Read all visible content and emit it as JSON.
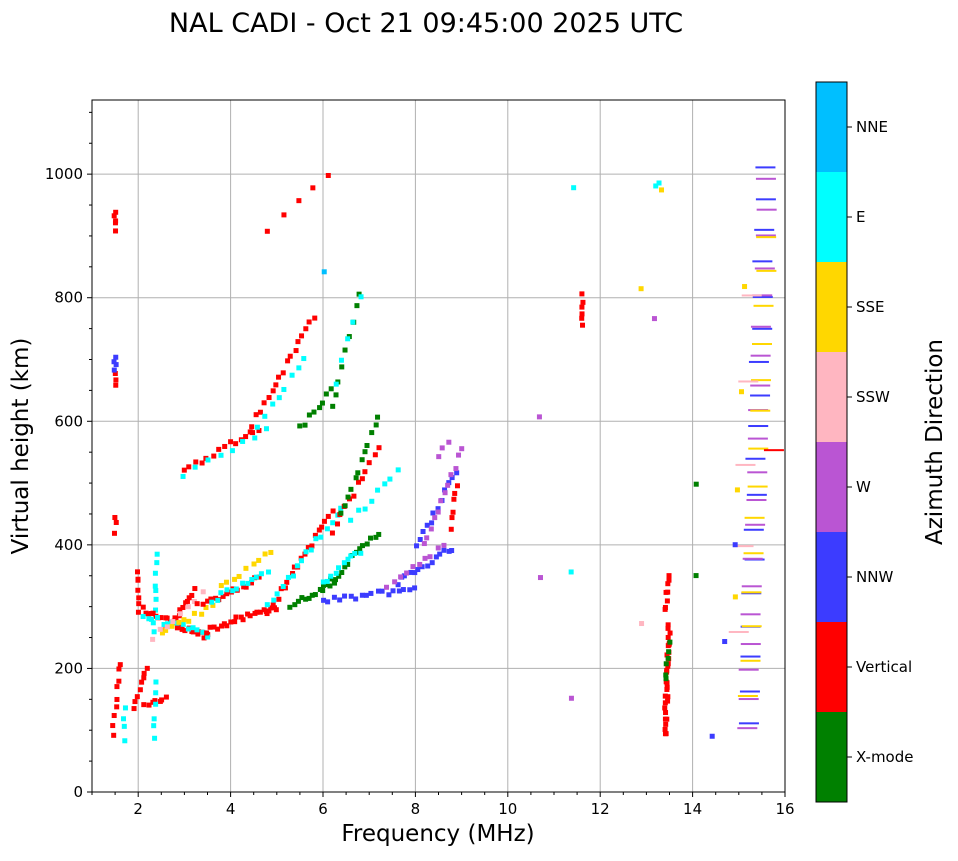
{
  "chart_data": {
    "type": "scatter",
    "title": "NAL CADI - Oct 21 09:45:00 2025 UTC",
    "xlabel": "Frequency (MHz)",
    "ylabel": "Virtual height (km)",
    "xlim": [
      1,
      16
    ],
    "ylim": [
      0,
      1120
    ],
    "xticks": [
      2,
      4,
      6,
      8,
      10,
      12,
      14,
      16
    ],
    "yticks": [
      0,
      200,
      400,
      600,
      800,
      1000
    ],
    "xtick_labels": [
      "2",
      "4",
      "6",
      "8",
      "10",
      "12",
      "14",
      "16"
    ],
    "ytick_labels": [
      "0",
      "200",
      "400",
      "600",
      "800",
      "1000"
    ],
    "grid": true,
    "colorbar": {
      "label": "Azimuth Direction",
      "categories": [
        {
          "name": "NNE",
          "color": "#00bfff"
        },
        {
          "name": "E",
          "color": "#00ffff"
        },
        {
          "name": "SSE",
          "color": "#ffd700"
        },
        {
          "name": "SSW",
          "color": "#ffb6c1"
        },
        {
          "name": "W",
          "color": "#ba55d3"
        },
        {
          "name": "NNW",
          "color": "#3c3cff"
        },
        {
          "name": "Vertical",
          "color": "#ff0000"
        },
        {
          "name": "X-mode",
          "color": "#008000"
        }
      ]
    },
    "echo_segments": [
      {
        "direction": "Vertical",
        "f": [
          1.5,
          1.5
        ],
        "h": [
          910,
          935
        ],
        "count": 5
      },
      {
        "direction": "Vertical",
        "f": [
          1.5,
          1.5
        ],
        "h": [
          660,
          680
        ],
        "count": 3
      },
      {
        "direction": "NNW",
        "f": [
          1.5,
          1.5
        ],
        "h": [
          680,
          705
        ],
        "count": 4
      },
      {
        "direction": "Vertical",
        "f": [
          1.5,
          1.5
        ],
        "h": [
          420,
          445
        ],
        "count": 3
      },
      {
        "direction": "Vertical",
        "f": [
          1.45,
          1.6
        ],
        "h": [
          95,
          210
        ],
        "count": 9
      },
      {
        "direction": "Vertical",
        "f": [
          2.0,
          2.0
        ],
        "h": [
          295,
          360
        ],
        "count": 7
      },
      {
        "direction": "Vertical",
        "f": [
          1.9,
          2.2
        ],
        "h": [
          140,
          200
        ],
        "count": 8
      },
      {
        "direction": "E",
        "f": [
          1.7,
          1.7
        ],
        "h": [
          85,
          135
        ],
        "count": 4
      },
      {
        "direction": "Vertical",
        "f": [
          2.15,
          2.6
        ],
        "h": [
          140,
          150
        ],
        "count": 7
      },
      {
        "direction": "E",
        "f": [
          2.35,
          2.4
        ],
        "h": [
          85,
          175
        ],
        "count": 6
      },
      {
        "direction": "E",
        "f": [
          2.35,
          2.4
        ],
        "h": [
          260,
          385
        ],
        "count": 9
      },
      {
        "direction": "Vertical",
        "f": [
          2.1,
          3.5
        ],
        "h": [
          295,
          250
        ],
        "count": 25
      },
      {
        "direction": "Vertical",
        "f": [
          2.6,
          3.2
        ],
        "h": [
          260,
          325
        ],
        "count": 14
      },
      {
        "direction": "E",
        "f": [
          2.1,
          3.5
        ],
        "h": [
          285,
          255
        ],
        "count": 14
      },
      {
        "direction": "SSE",
        "f": [
          2.5,
          3.6
        ],
        "h": [
          255,
          300
        ],
        "count": 10
      },
      {
        "direction": "SSW",
        "f": [
          2.3,
          3.4
        ],
        "h": [
          250,
          320
        ],
        "count": 8
      },
      {
        "direction": "Vertical",
        "f": [
          3.5,
          5.0
        ],
        "h": [
          262,
          300
        ],
        "count": 22
      },
      {
        "direction": "Vertical",
        "f": [
          3.3,
          4.6
        ],
        "h": [
          300,
          345
        ],
        "count": 16
      },
      {
        "direction": "E",
        "f": [
          3.6,
          4.8
        ],
        "h": [
          310,
          360
        ],
        "count": 12
      },
      {
        "direction": "SSE",
        "f": [
          3.8,
          4.9
        ],
        "h": [
          330,
          390
        ],
        "count": 9
      },
      {
        "direction": "Vertical",
        "f": [
          4.8,
          6.2
        ],
        "h": [
          290,
          455
        ],
        "count": 20
      },
      {
        "direction": "E",
        "f": [
          4.8,
          6.4
        ],
        "h": [
          300,
          460
        ],
        "count": 16
      },
      {
        "direction": "X-mode",
        "f": [
          5.3,
          6.3
        ],
        "h": [
          300,
          345
        ],
        "count": 14
      },
      {
        "direction": "X-mode",
        "f": [
          6.0,
          7.2
        ],
        "h": [
          330,
          420
        ],
        "count": 16
      },
      {
        "direction": "E",
        "f": [
          6.0,
          6.8
        ],
        "h": [
          340,
          390
        ],
        "count": 10
      },
      {
        "direction": "Vertical",
        "f": [
          6.2,
          7.2
        ],
        "h": [
          420,
          560
        ],
        "count": 12
      },
      {
        "direction": "X-mode",
        "f": [
          6.4,
          7.2
        ],
        "h": [
          450,
          605
        ],
        "count": 12
      },
      {
        "direction": "E",
        "f": [
          6.6,
          7.6
        ],
        "h": [
          440,
          520
        ],
        "count": 8
      },
      {
        "direction": "NNW",
        "f": [
          6.0,
          8.0
        ],
        "h": [
          308,
          330
        ],
        "count": 18
      },
      {
        "direction": "NNW",
        "f": [
          7.6,
          8.8
        ],
        "h": [
          340,
          395
        ],
        "count": 14
      },
      {
        "direction": "W",
        "f": [
          7.4,
          8.6
        ],
        "h": [
          335,
          400
        ],
        "count": 10
      },
      {
        "direction": "NNW",
        "f": [
          8.0,
          8.9
        ],
        "h": [
          395,
          520
        ],
        "count": 12
      },
      {
        "direction": "W",
        "f": [
          8.2,
          9.0
        ],
        "h": [
          400,
          555
        ],
        "count": 12
      },
      {
        "direction": "Vertical",
        "f": [
          8.8,
          8.9
        ],
        "h": [
          425,
          500
        ],
        "count": 6
      },
      {
        "direction": "W",
        "f": [
          8.5,
          8.7
        ],
        "h": [
          540,
          570
        ],
        "count": 3
      },
      {
        "direction": "Vertical",
        "f": [
          3.0,
          4.6
        ],
        "h": [
          520,
          590
        ],
        "count": 14
      },
      {
        "direction": "E",
        "f": [
          3.0,
          4.8
        ],
        "h": [
          515,
          585
        ],
        "count": 8
      },
      {
        "direction": "Vertical",
        "f": [
          4.4,
          5.8
        ],
        "h": [
          585,
          770
        ],
        "count": 18
      },
      {
        "direction": "E",
        "f": [
          4.6,
          5.6
        ],
        "h": [
          595,
          700
        ],
        "count": 8
      },
      {
        "direction": "X-mode",
        "f": [
          5.5,
          6.2
        ],
        "h": [
          590,
          650
        ],
        "count": 8
      },
      {
        "direction": "X-mode",
        "f": [
          6.2,
          6.8
        ],
        "h": [
          620,
          810
        ],
        "count": 9
      },
      {
        "direction": "E",
        "f": [
          6.3,
          6.8
        ],
        "h": [
          660,
          800
        ],
        "count": 5
      },
      {
        "direction": "Vertical",
        "f": [
          4.8,
          6.1
        ],
        "h": [
          910,
          995
        ],
        "count": 5
      },
      {
        "direction": "Vertical",
        "f": [
          11.6,
          11.6
        ],
        "h": [
          760,
          805
        ],
        "count": 6
      },
      {
        "direction": "Vertical",
        "f": [
          13.4,
          13.5
        ],
        "h": [
          90,
          270
        ],
        "count": 30
      },
      {
        "direction": "X-mode",
        "f": [
          13.4,
          13.5
        ],
        "h": [
          180,
          240
        ],
        "count": 6
      },
      {
        "direction": "Vertical",
        "f": [
          13.4,
          13.5
        ],
        "h": [
          295,
          350
        ],
        "count": 8
      },
      {
        "direction": "NNW",
        "f": [
          15.2,
          15.6
        ],
        "h": [
          110,
          1015
        ],
        "count": 18
      },
      {
        "direction": "W",
        "f": [
          15.2,
          15.6
        ],
        "h": [
          100,
          990
        ],
        "count": 20
      },
      {
        "direction": "SSE",
        "f": [
          15.2,
          15.6
        ],
        "h": [
          155,
          900
        ],
        "count": 14
      },
      {
        "direction": "SSW",
        "f": [
          15.0,
          15.3
        ],
        "h": [
          260,
          800
        ],
        "count": 5
      },
      {
        "direction": "SSE",
        "f": [
          14.9,
          15.1
        ],
        "h": [
          320,
          815
        ],
        "count": 4
      },
      {
        "direction": "Vertical",
        "f": [
          15.75,
          15.95
        ],
        "h": [
          555,
          648
        ],
        "count": 3
      },
      {
        "direction": "X-mode",
        "f": [
          14.1,
          14.1
        ],
        "h": [
          350,
          500
        ],
        "count": 2
      },
      {
        "direction": "NNW",
        "f": [
          14.4,
          14.95
        ],
        "h": [
          90,
          400
        ],
        "count": 3
      },
      {
        "direction": "SSE",
        "f": [
          12.9,
          13.3
        ],
        "h": [
          810,
          972
        ],
        "count": 2
      },
      {
        "direction": "E",
        "f": [
          13.2,
          13.3
        ],
        "h": [
          985,
          990
        ],
        "count": 2
      },
      {
        "direction": "W",
        "f": [
          13.2,
          13.2
        ],
        "h": [
          770,
          770
        ],
        "count": 1
      },
      {
        "direction": "SSW",
        "f": [
          12.9,
          12.9
        ],
        "h": [
          270,
          270
        ],
        "count": 1
      },
      {
        "direction": "W",
        "f": [
          11.4,
          11.4
        ],
        "h": [
          150,
          150
        ],
        "count": 1
      },
      {
        "direction": "E",
        "f": [
          11.4,
          11.4
        ],
        "h": [
          355,
          975
        ],
        "count": 2
      },
      {
        "direction": "W",
        "f": [
          10.7,
          10.7
        ],
        "h": [
          352,
          608
        ],
        "count": 2
      },
      {
        "direction": "NNE",
        "f": [
          6.0,
          6.0
        ],
        "h": [
          840,
          840
        ],
        "count": 1
      }
    ]
  }
}
